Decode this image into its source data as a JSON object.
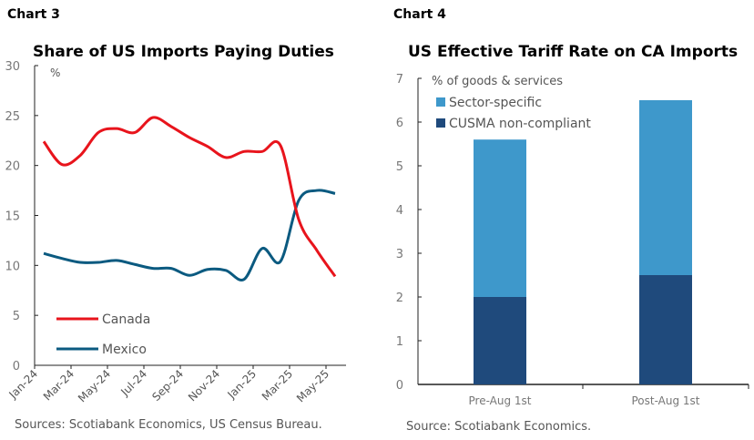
{
  "chart_data": [
    {
      "panel_label": "Chart 3",
      "type": "line",
      "title": "Share of US Imports Paying Duties",
      "ylabel": "%",
      "ylim": [
        0,
        30
      ],
      "yticks": [
        "0",
        "5",
        "10",
        "15",
        "20",
        "25",
        "30"
      ],
      "x": [
        "Jan-24",
        "Feb-24",
        "Mar-24",
        "Apr-24",
        "May-24",
        "Jun-24",
        "Jul-24",
        "Aug-24",
        "Sep-24",
        "Oct-24",
        "Nov-24",
        "Dec-24",
        "Jan-25",
        "Feb-25",
        "Mar-25",
        "Apr-25",
        "May-25"
      ],
      "xtick_labels": [
        "Jan-24",
        "Mar-24",
        "May-24",
        "Jul-24",
        "Sep-24",
        "Nov-24",
        "Jan-25",
        "Mar-25",
        "May-25"
      ],
      "series": [
        {
          "name": "Canada",
          "color": "#e8141c",
          "values": [
            22.4,
            20.1,
            21.0,
            23.3,
            23.7,
            23.3,
            24.8,
            23.9,
            22.8,
            21.9,
            20.8,
            21.4,
            21.4,
            22.0,
            14.6,
            11.5,
            8.9
          ]
        },
        {
          "name": "Mexico",
          "color": "#0b5a80",
          "values": [
            11.2,
            10.7,
            10.3,
            10.3,
            10.5,
            10.1,
            9.7,
            9.7,
            9.0,
            9.6,
            9.5,
            8.6,
            11.7,
            10.4,
            16.5,
            17.5,
            17.2
          ]
        }
      ],
      "legend_position": "bottom-left",
      "grid": false,
      "source": "Sources: Scotiabank Economics, US Census Bureau."
    },
    {
      "panel_label": "Chart 4",
      "type": "bar",
      "stacked": true,
      "title": "US Effective Tariff Rate on CA Imports",
      "ylabel": "% of goods & services",
      "ylim": [
        0,
        7
      ],
      "yticks": [
        "0",
        "1",
        "2",
        "3",
        "4",
        "5",
        "6",
        "7"
      ],
      "categories": [
        "Pre-Aug 1st",
        "Post-Aug 1st"
      ],
      "series": [
        {
          "name": "CUSMA non-compliant",
          "color": "#1f4a7c",
          "values": [
            2.0,
            2.5
          ]
        },
        {
          "name": "Sector-specific",
          "color": "#3e98cb",
          "values": [
            3.6,
            4.0
          ]
        }
      ],
      "legend_position": "top-left",
      "grid": false,
      "source": "Source: Scotiabank Economics."
    }
  ]
}
